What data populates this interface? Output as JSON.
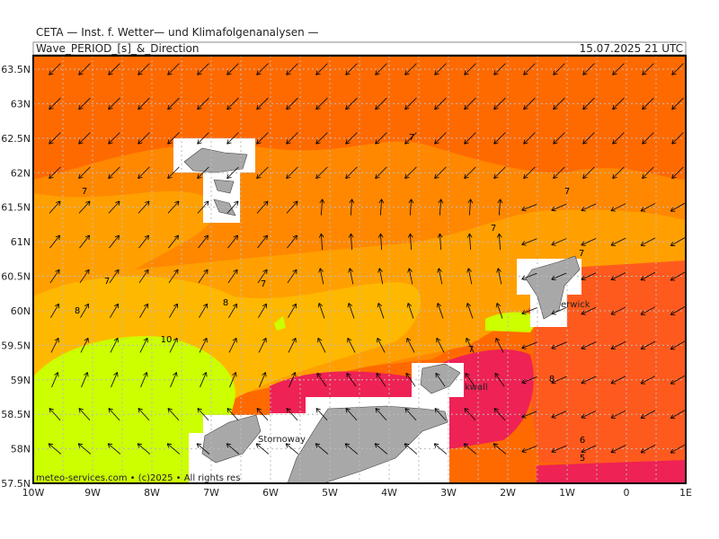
{
  "header": {
    "title": "CETA — Inst. f. Wetter— und Klimafolgenanalysen —",
    "subtitle": "Wave_PERIOD_[s]_&_Direction",
    "date": "15.07.2025 21 UTC"
  },
  "map": {
    "lat_labels": [
      "63.5N",
      "63N",
      "62.5N",
      "62N",
      "61.5N",
      "61N",
      "60.5N",
      "60N",
      "59.5N",
      "59N",
      "58.5N",
      "58N",
      "57.5N"
    ],
    "lon_labels": [
      "10W",
      "9W",
      "8W",
      "7W",
      "6W",
      "5W",
      "4W",
      "3W",
      "2W",
      "1W",
      "0",
      "1E"
    ],
    "contour_labels": [
      "7",
      "7",
      "7",
      "7",
      "7",
      "7",
      "8",
      "8",
      "10",
      "7",
      "7",
      "8",
      "6",
      "5"
    ],
    "places": [
      "erwick",
      "kwall",
      "Stornoway"
    ],
    "footer": "meteo-services.com • (c)2025 • All rights res"
  }
}
